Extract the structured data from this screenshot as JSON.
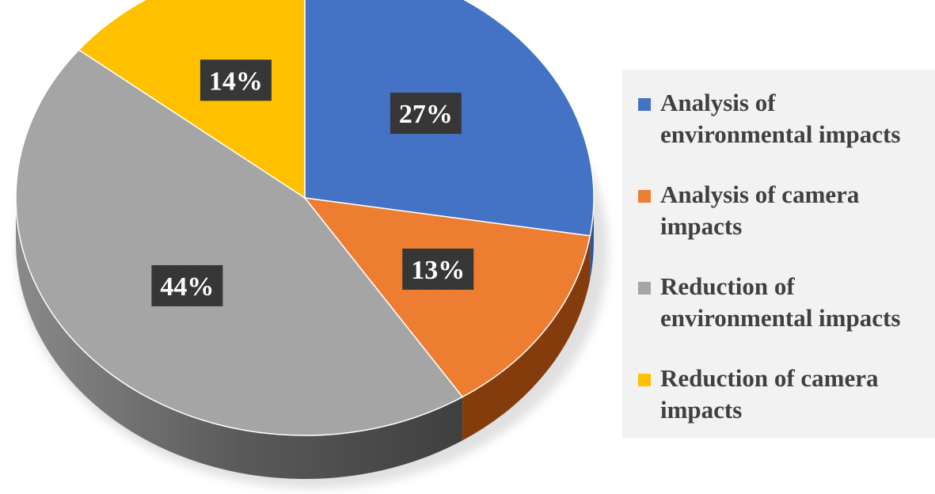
{
  "chart_data": {
    "type": "pie",
    "title": "",
    "legend_position": "right",
    "slices": [
      {
        "label": "Analysis of environmental impacts",
        "value": 27,
        "display": "27%",
        "color": "#4472C4",
        "side_color": "#2F5597"
      },
      {
        "label": "Analysis of camera impacts",
        "value": 13,
        "display": "13%",
        "color": "#ED7D31",
        "side_color": "#843C0C"
      },
      {
        "label": "Reduction of environmental impacts",
        "value": 44,
        "display": "44%",
        "color": "#A5A5A5",
        "side_color": "#595959"
      },
      {
        "label": "Reduction of camera impacts",
        "value": 14,
        "display": "14%",
        "color": "#FFC000",
        "side_color": "#9C7500"
      }
    ]
  }
}
